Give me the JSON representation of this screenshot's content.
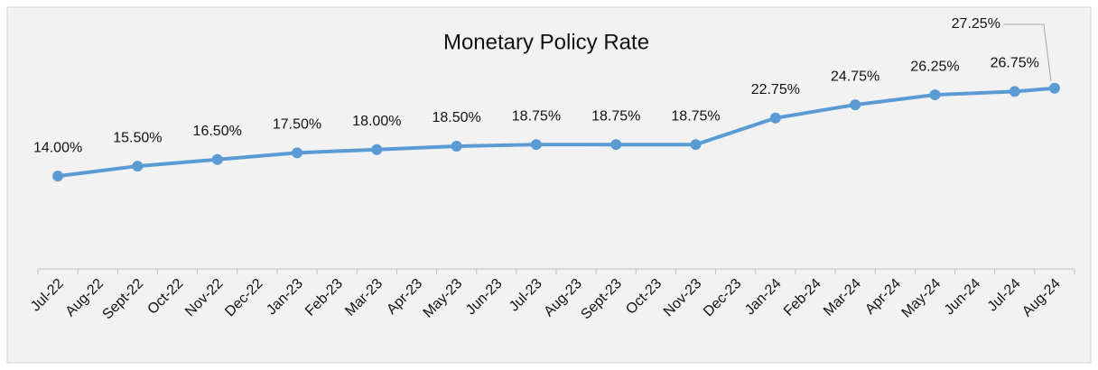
{
  "chart_data": {
    "type": "line",
    "title": "Monetary Policy Rate",
    "categories": [
      "Jul-22",
      "Aug-22",
      "Sept-22",
      "Oct-22",
      "Nov-22",
      "Dec-22",
      "Jan-23",
      "Feb-23",
      "Mar-23",
      "Apr-23",
      "May-23",
      "Jun-23",
      "Jul-23",
      "Aug-23",
      "Sept-23",
      "Oct-23",
      "Nov-23",
      "Dec-23",
      "Jan-24",
      "Feb-24",
      "Mar-24",
      "Apr-24",
      "May-24",
      "Jun-24",
      "Jul-24",
      "Aug-24"
    ],
    "values": [
      14.0,
      null,
      15.5,
      null,
      16.5,
      null,
      17.5,
      null,
      18.0,
      null,
      18.5,
      null,
      18.75,
      null,
      18.75,
      null,
      18.75,
      null,
      22.75,
      null,
      24.75,
      null,
      26.25,
      null,
      26.75,
      27.25
    ],
    "value_labels": [
      "14.00%",
      null,
      "15.50%",
      null,
      "16.50%",
      null,
      "17.50%",
      null,
      "18.00%",
      null,
      "18.50%",
      null,
      "18.75%",
      null,
      "18.75%",
      null,
      "18.75%",
      null,
      "22.75%",
      null,
      "24.75%",
      null,
      "26.25%",
      null,
      "26.75%",
      "27.25%"
    ],
    "color": "#5b9bd5",
    "span_gaps": true,
    "ylim": [
      0,
      40
    ]
  }
}
